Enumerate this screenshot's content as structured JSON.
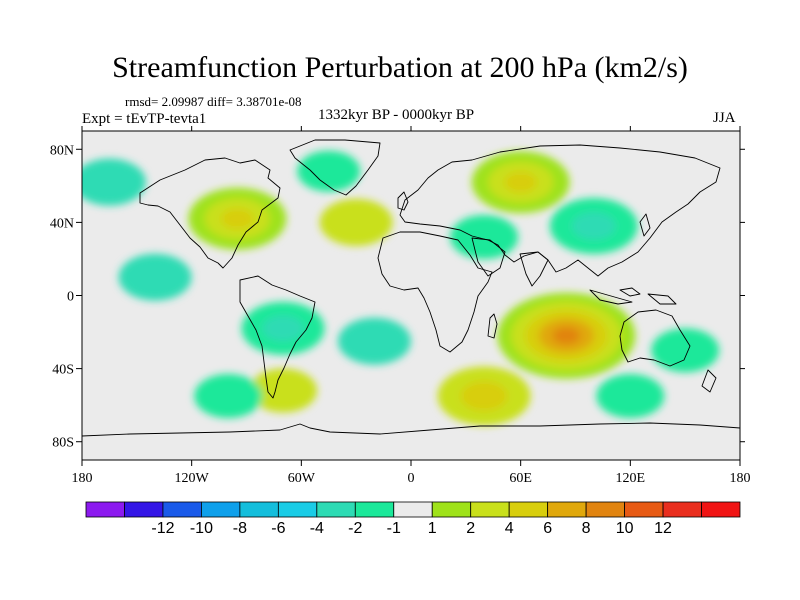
{
  "title": "Streamfunction Perturbation at 200 hPa (km2/s)",
  "stats_text": "rmsd= 2.09987 diff= 3.38701e-08",
  "experiment": "Expt = tEvTP-tevta1",
  "period": "1332kyr BP - 0000kyr BP",
  "season": "JJA",
  "map": {
    "type": "filled-contour-map",
    "projection": "cylindrical equidistant",
    "lon_range": [
      -180,
      180
    ],
    "lat_range": [
      -90,
      90
    ],
    "lon_ticks": [
      {
        "value": -180,
        "label": "180"
      },
      {
        "value": -120,
        "label": "120W"
      },
      {
        "value": -60,
        "label": "60W"
      },
      {
        "value": 0,
        "label": "0"
      },
      {
        "value": 60,
        "label": "60E"
      },
      {
        "value": 120,
        "label": "120E"
      },
      {
        "value": 180,
        "label": "180"
      }
    ],
    "lat_ticks": [
      {
        "value": 80,
        "label": "80N"
      },
      {
        "value": 40,
        "label": "40N"
      },
      {
        "value": 0,
        "label": "0"
      },
      {
        "value": -40,
        "label": "40S"
      },
      {
        "value": -80,
        "label": "80S"
      }
    ],
    "anomaly_regions": [
      {
        "name": "north-pacific-high",
        "lon": -165,
        "lat": 62,
        "value": -2.5
      },
      {
        "name": "north-america-positive",
        "lon": -95,
        "lat": 42,
        "value": 5
      },
      {
        "name": "north-atlantic-positive",
        "lon": -30,
        "lat": 40,
        "value": 2.5
      },
      {
        "name": "greenland-negative",
        "lon": -45,
        "lat": 68,
        "value": -1.5
      },
      {
        "name": "eurasia-positive",
        "lon": 60,
        "lat": 62,
        "value": 5
      },
      {
        "name": "asia-negative",
        "lon": 100,
        "lat": 38,
        "value": -4
      },
      {
        "name": "arabian-negative",
        "lon": 40,
        "lat": 32,
        "value": -2
      },
      {
        "name": "tropical-pacific-negative",
        "lon": -140,
        "lat": 10,
        "value": -2.5
      },
      {
        "name": "south-america-negative",
        "lon": -70,
        "lat": -18,
        "value": -3.5
      },
      {
        "name": "south-atlantic-negative",
        "lon": -20,
        "lat": -25,
        "value": -2.5
      },
      {
        "name": "indian-ocean-positive",
        "lon": 85,
        "lat": -22,
        "value": 9
      },
      {
        "name": "south-pacific-negative",
        "lon": 150,
        "lat": -30,
        "value": -2
      },
      {
        "name": "southern-ocean-positive",
        "lon": 40,
        "lat": -55,
        "value": 4.5
      },
      {
        "name": "patagonia-positive",
        "lon": -70,
        "lat": -52,
        "value": 2
      },
      {
        "name": "south-pacific-ring-negative",
        "lon": -100,
        "lat": -55,
        "value": -2
      },
      {
        "name": "antarctic-coast-negative",
        "lon": 120,
        "lat": -55,
        "value": -2
      }
    ]
  },
  "colorbar": {
    "colors": [
      "#8c1aef",
      "#3416e6",
      "#1a5ae9",
      "#0fa0eb",
      "#14bedc",
      "#1acce6",
      "#2ddbb4",
      "#1be89a",
      "#ebebeb",
      "#9fe21a",
      "#c9e01b",
      "#d8ce0d",
      "#e0a80c",
      "#e18410",
      "#e75a14",
      "#e92e1e",
      "#f01414"
    ],
    "labels": [
      "-12",
      "-10",
      "-8",
      "-6",
      "-4",
      "-2",
      "-1",
      "1",
      "2",
      "4",
      "6",
      "8",
      "10",
      "12"
    ]
  }
}
